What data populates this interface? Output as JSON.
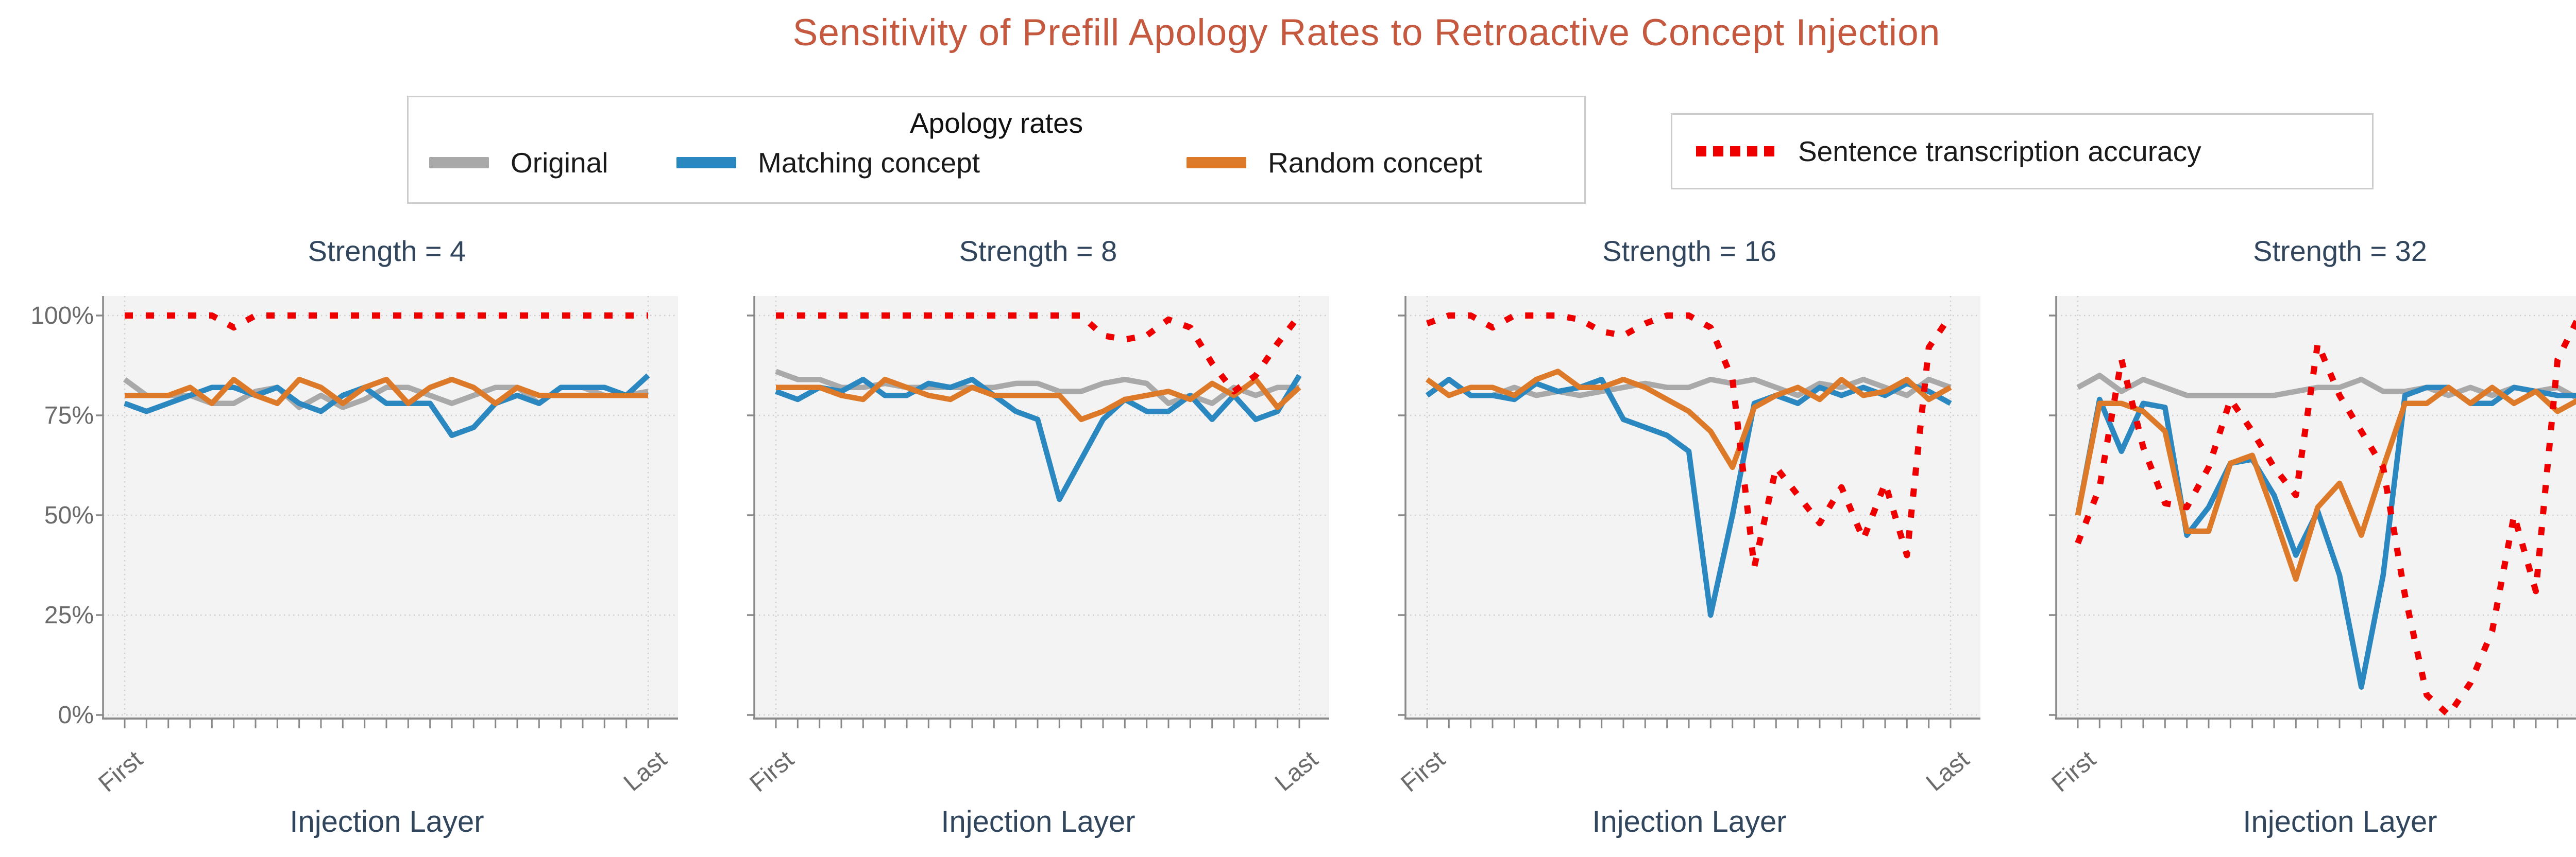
{
  "title": "Sensitivity of Prefill Apology Rates to Retroactive Concept Injection",
  "legend_apology": {
    "title": "Apology rates",
    "items": [
      {
        "label": "Original",
        "color": "#a9a9a9",
        "style": "solid"
      },
      {
        "label": "Matching concept",
        "color": "#2a87bf",
        "style": "solid"
      },
      {
        "label": "Random concept",
        "color": "#dd7a29",
        "style": "solid"
      }
    ]
  },
  "legend_transcription": {
    "label": "Sentence transcription accuracy",
    "color": "#ee0000",
    "style": "dotted"
  },
  "axes": {
    "x_label": "Injection Layer",
    "x_first": "First",
    "x_last": "Last",
    "y_tick_labels": [
      "100%",
      "75%",
      "50%",
      "25%",
      "0%"
    ]
  },
  "colors": {
    "title": "#c4593f",
    "subtitle": "#31465c",
    "tick": "#6b6b6b",
    "plot_bg": "#f3f3f3",
    "grid": "#cfcfcf",
    "spine": "#8a8a8a"
  },
  "chart_data": [
    {
      "type": "line",
      "title": "Strength = 4",
      "x_axis": "Injection Layer (25 layers, First to Last)",
      "ylim": [
        0,
        100
      ],
      "y_ticks": [
        "0%",
        "25%",
        "50%",
        "75%",
        "100%"
      ],
      "grid": true,
      "series": [
        {
          "name": "Original",
          "color": "#a9a9a9",
          "style": "solid",
          "values": [
            84,
            80,
            80,
            80,
            78,
            78,
            81,
            82,
            77,
            80,
            77,
            79,
            82,
            82,
            80,
            78,
            80,
            82,
            82,
            78,
            82,
            82,
            80,
            80,
            81
          ]
        },
        {
          "name": "Matching concept",
          "color": "#2a87bf",
          "style": "solid",
          "values": [
            78,
            76,
            78,
            80,
            82,
            82,
            80,
            82,
            78,
            76,
            80,
            82,
            78,
            78,
            78,
            70,
            72,
            78,
            80,
            78,
            82,
            82,
            82,
            80,
            85
          ]
        },
        {
          "name": "Random concept",
          "color": "#dd7a29",
          "style": "solid",
          "values": [
            80,
            80,
            80,
            82,
            78,
            84,
            80,
            78,
            84,
            82,
            78,
            82,
            84,
            78,
            82,
            84,
            82,
            78,
            82,
            80,
            80,
            80,
            80,
            80,
            80
          ]
        },
        {
          "name": "Sentence transcription accuracy",
          "color": "#ee0000",
          "style": "dotted",
          "values": [
            100,
            100,
            100,
            100,
            100,
            97,
            100,
            100,
            100,
            100,
            100,
            100,
            100,
            100,
            100,
            100,
            100,
            100,
            100,
            100,
            100,
            100,
            100,
            100,
            100
          ]
        }
      ]
    },
    {
      "type": "line",
      "title": "Strength = 8",
      "x_axis": "Injection Layer (25 layers, First to Last)",
      "ylim": [
        0,
        100
      ],
      "y_ticks": [
        "0%",
        "25%",
        "50%",
        "75%",
        "100%"
      ],
      "grid": true,
      "series": [
        {
          "name": "Original",
          "color": "#a9a9a9",
          "style": "solid",
          "values": [
            86,
            84,
            84,
            82,
            82,
            83,
            82,
            82,
            82,
            82,
            82,
            83,
            83,
            81,
            81,
            83,
            84,
            83,
            78,
            80,
            78,
            82,
            80,
            82,
            82
          ]
        },
        {
          "name": "Matching concept",
          "color": "#2a87bf",
          "style": "solid",
          "values": [
            81,
            79,
            82,
            81,
            84,
            80,
            80,
            83,
            82,
            84,
            80,
            76,
            74,
            54,
            64,
            74,
            79,
            76,
            76,
            80,
            74,
            80,
            74,
            76,
            85
          ]
        },
        {
          "name": "Random concept",
          "color": "#dd7a29",
          "style": "solid",
          "values": [
            82,
            82,
            82,
            80,
            79,
            84,
            82,
            80,
            79,
            82,
            80,
            80,
            80,
            80,
            74,
            76,
            79,
            80,
            81,
            79,
            83,
            80,
            84,
            77,
            82
          ]
        },
        {
          "name": "Sentence transcription accuracy",
          "color": "#ee0000",
          "style": "dotted",
          "values": [
            100,
            100,
            100,
            100,
            100,
            100,
            100,
            100,
            100,
            100,
            100,
            100,
            100,
            100,
            100,
            95,
            94,
            95,
            99,
            97,
            88,
            81,
            85,
            93,
            100
          ]
        }
      ]
    },
    {
      "type": "line",
      "title": "Strength = 16",
      "x_axis": "Injection Layer (25 layers, First to Last)",
      "ylim": [
        0,
        100
      ],
      "y_ticks": [
        "0%",
        "25%",
        "50%",
        "75%",
        "100%"
      ],
      "grid": true,
      "series": [
        {
          "name": "Original",
          "color": "#a9a9a9",
          "style": "solid",
          "values": [
            80,
            84,
            80,
            80,
            82,
            80,
            81,
            80,
            81,
            82,
            83,
            82,
            82,
            84,
            83,
            84,
            82,
            80,
            83,
            82,
            84,
            82,
            80,
            84,
            82
          ]
        },
        {
          "name": "Matching concept",
          "color": "#2a87bf",
          "style": "solid",
          "values": [
            80,
            84,
            80,
            80,
            79,
            83,
            81,
            82,
            84,
            74,
            72,
            70,
            66,
            25,
            50,
            78,
            80,
            78,
            82,
            80,
            82,
            80,
            83,
            81,
            78
          ]
        },
        {
          "name": "Random concept",
          "color": "#dd7a29",
          "style": "solid",
          "values": [
            84,
            80,
            82,
            82,
            80,
            84,
            86,
            82,
            82,
            84,
            82,
            79,
            76,
            71,
            62,
            77,
            80,
            82,
            79,
            84,
            80,
            81,
            84,
            79,
            82
          ]
        },
        {
          "name": "Sentence transcription accuracy",
          "color": "#ee0000",
          "style": "dotted",
          "values": [
            98,
            100,
            100,
            97,
            100,
            100,
            100,
            99,
            96,
            95,
            98,
            100,
            100,
            97,
            84,
            37,
            62,
            55,
            48,
            57,
            44,
            58,
            40,
            92,
            100
          ]
        }
      ]
    },
    {
      "type": "line",
      "title": "Strength = 32",
      "x_axis": "Injection Layer (25 layers, First to Last)",
      "ylim": [
        0,
        100
      ],
      "y_ticks": [
        "0%",
        "25%",
        "50%",
        "75%",
        "100%"
      ],
      "grid": true,
      "series": [
        {
          "name": "Original",
          "color": "#a9a9a9",
          "style": "solid",
          "values": [
            82,
            85,
            81,
            84,
            82,
            80,
            80,
            80,
            80,
            80,
            81,
            82,
            82,
            84,
            81,
            81,
            82,
            80,
            82,
            80,
            82,
            81,
            82,
            79,
            80
          ]
        },
        {
          "name": "Matching concept",
          "color": "#2a87bf",
          "style": "solid",
          "values": [
            50,
            79,
            66,
            78,
            77,
            45,
            52,
            63,
            64,
            55,
            40,
            51,
            35,
            7,
            35,
            80,
            82,
            82,
            78,
            78,
            82,
            81,
            80,
            80,
            76
          ]
        },
        {
          "name": "Random concept",
          "color": "#dd7a29",
          "style": "solid",
          "values": [
            50,
            78,
            78,
            76,
            71,
            46,
            46,
            63,
            65,
            50,
            34,
            52,
            58,
            45,
            62,
            78,
            78,
            82,
            78,
            82,
            78,
            81,
            76,
            79,
            81
          ]
        },
        {
          "name": "Sentence transcription accuracy",
          "color": "#ee0000",
          "style": "dotted",
          "values": [
            43,
            57,
            89,
            67,
            53,
            52,
            62,
            79,
            71,
            62,
            55,
            93,
            80,
            71,
            62,
            30,
            5,
            0,
            8,
            21,
            50,
            31,
            89,
            100,
            100
          ]
        }
      ]
    }
  ]
}
